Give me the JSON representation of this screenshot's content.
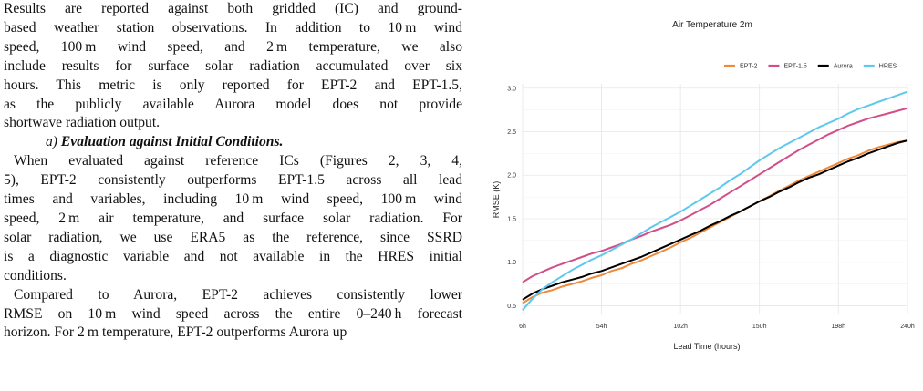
{
  "paper": {
    "lines_intro": [
      "Results are reported against both gridded (IC) and ground-",
      "based weather station observations. In addition to 10 m wind",
      "speed, 100 m wind speed, and 2 m temperature, we also",
      "include results for surface solar radiation accumulated over six",
      "hours. This metric is only reported for EPT-2 and EPT-1.5,",
      "as the publicly available Aurora model does not provide",
      "shortwave radiation output."
    ],
    "subsection_letter": "a)",
    "subsection_title": "Evaluation against Initial Conditions.",
    "lines_eval": [
      "When evaluated against reference ICs (Figures 2, 3, 4,",
      "5), EPT-2 consistently outperforms EPT-1.5 across all lead",
      "times and variables, including 10 m wind speed, 100 m wind",
      "speed, 2 m air temperature, and surface solar radiation. For",
      "solar radiation, we use ERA5 as the reference, since SSRD",
      "is a diagnostic variable and not available in the HRES initial",
      "conditions."
    ],
    "lines_compare": [
      "Compared to Aurora, EPT-2 achieves consistently lower",
      "RMSE on 10 m wind speed across the entire 0–240 h forecast",
      "horizon. For 2 m temperature, EPT-2 outperforms Aurora up"
    ]
  },
  "chart_data": {
    "type": "line",
    "title": "Air Temperature 2m",
    "xlabel": "Lead Time (hours)",
    "ylabel": "RMSE (K)",
    "x_ticks": [
      "6h",
      "54h",
      "102h",
      "150h",
      "198h",
      "240h"
    ],
    "x_tick_values": [
      6,
      54,
      102,
      150,
      198,
      240
    ],
    "y_ticks": [
      "0.5",
      "1.0",
      "1.5",
      "2.0",
      "2.5",
      "3.0"
    ],
    "y_tick_values": [
      0.5,
      1.0,
      1.5,
      2.0,
      2.5,
      3.0
    ],
    "xlim": [
      6,
      240
    ],
    "ylim": [
      0.4,
      3.05
    ],
    "grid": true,
    "legend_position": "top-right",
    "x": [
      6,
      12,
      18,
      24,
      30,
      36,
      42,
      48,
      54,
      60,
      66,
      72,
      78,
      84,
      90,
      96,
      102,
      108,
      114,
      120,
      126,
      132,
      138,
      144,
      150,
      156,
      162,
      168,
      174,
      180,
      186,
      192,
      198,
      204,
      210,
      216,
      222,
      228,
      234,
      240
    ],
    "series": [
      {
        "name": "EPT-2",
        "color": "#ef8a3a",
        "values": [
          0.53,
          0.6,
          0.65,
          0.68,
          0.72,
          0.75,
          0.78,
          0.82,
          0.85,
          0.9,
          0.93,
          0.98,
          1.02,
          1.07,
          1.12,
          1.17,
          1.23,
          1.28,
          1.34,
          1.4,
          1.46,
          1.52,
          1.58,
          1.64,
          1.7,
          1.76,
          1.82,
          1.88,
          1.94,
          1.99,
          2.04,
          2.09,
          2.14,
          2.19,
          2.23,
          2.28,
          2.32,
          2.35,
          2.38,
          2.4
        ]
      },
      {
        "name": "EPT-1.5",
        "color": "#d14f86",
        "values": [
          0.77,
          0.84,
          0.89,
          0.94,
          0.98,
          1.02,
          1.06,
          1.1,
          1.13,
          1.17,
          1.21,
          1.26,
          1.3,
          1.35,
          1.39,
          1.43,
          1.48,
          1.54,
          1.6,
          1.66,
          1.73,
          1.8,
          1.87,
          1.94,
          2.01,
          2.08,
          2.15,
          2.22,
          2.29,
          2.35,
          2.41,
          2.47,
          2.52,
          2.57,
          2.61,
          2.65,
          2.68,
          2.71,
          2.74,
          2.77
        ]
      },
      {
        "name": "Aurora",
        "color": "#000000",
        "values": [
          0.57,
          0.64,
          0.69,
          0.73,
          0.77,
          0.8,
          0.83,
          0.87,
          0.9,
          0.94,
          0.98,
          1.02,
          1.06,
          1.11,
          1.16,
          1.21,
          1.26,
          1.31,
          1.36,
          1.42,
          1.47,
          1.53,
          1.58,
          1.64,
          1.7,
          1.75,
          1.81,
          1.86,
          1.92,
          1.97,
          2.01,
          2.06,
          2.11,
          2.16,
          2.2,
          2.25,
          2.29,
          2.33,
          2.37,
          2.4
        ]
      },
      {
        "name": "HRES",
        "color": "#5ec8ee",
        "values": [
          0.45,
          0.58,
          0.69,
          0.77,
          0.84,
          0.91,
          0.97,
          1.03,
          1.08,
          1.14,
          1.2,
          1.26,
          1.33,
          1.4,
          1.46,
          1.52,
          1.58,
          1.65,
          1.72,
          1.79,
          1.86,
          1.94,
          2.01,
          2.09,
          2.17,
          2.24,
          2.31,
          2.37,
          2.43,
          2.49,
          2.55,
          2.6,
          2.65,
          2.71,
          2.76,
          2.8,
          2.84,
          2.88,
          2.92,
          2.96
        ]
      }
    ]
  }
}
